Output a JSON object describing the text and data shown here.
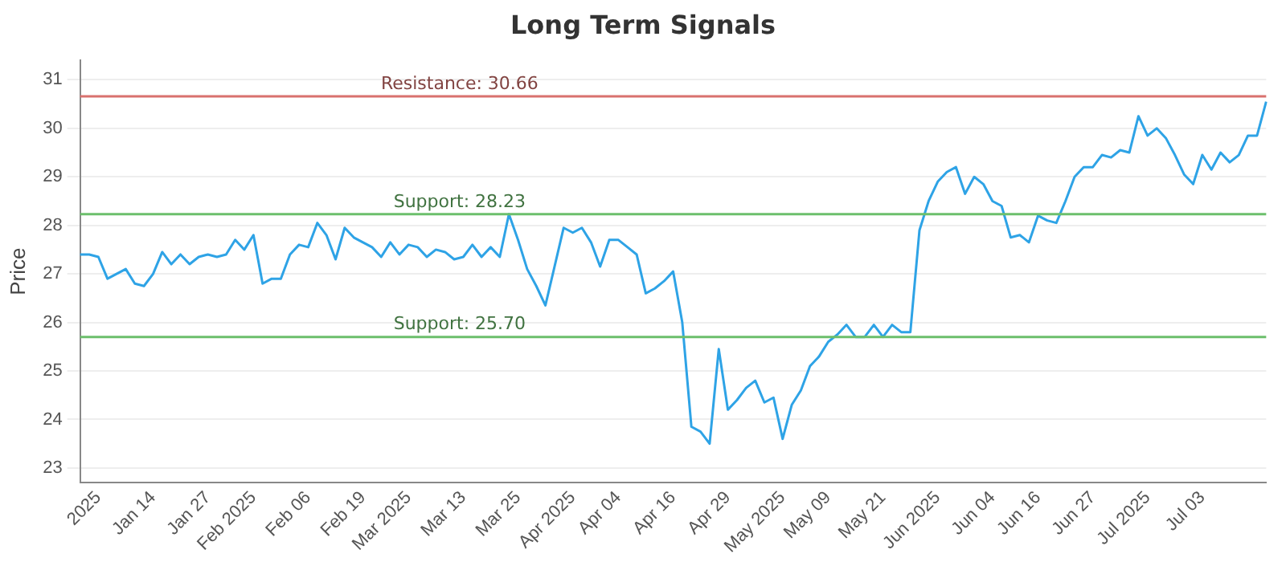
{
  "chart_data": {
    "type": "line",
    "title": "Long Term Signals",
    "ylabel": "Price",
    "categories": [
      null,
      null,
      "2025",
      null,
      null,
      null,
      null,
      null,
      "Jan 14",
      null,
      null,
      null,
      null,
      null,
      "Jan 27",
      null,
      null,
      null,
      null,
      "Feb 2025",
      null,
      null,
      null,
      null,
      null,
      "Feb 06",
      null,
      null,
      null,
      null,
      null,
      "Feb 19",
      null,
      null,
      null,
      null,
      "Mar 2025",
      null,
      null,
      null,
      null,
      null,
      "Mar 13",
      null,
      null,
      null,
      null,
      null,
      "Mar 25",
      null,
      null,
      null,
      null,
      null,
      "Apr 2025",
      null,
      null,
      null,
      null,
      "Apr 04",
      null,
      null,
      null,
      null,
      null,
      "Apr 16",
      null,
      null,
      null,
      null,
      null,
      "Apr 29",
      null,
      null,
      null,
      null,
      null,
      "May 2025",
      null,
      null,
      null,
      null,
      "May 09",
      null,
      null,
      null,
      null,
      null,
      "May 21",
      null,
      null,
      null,
      null,
      null,
      "Jun 2025",
      null,
      null,
      null,
      null,
      null,
      "Jun 04",
      null,
      null,
      null,
      null,
      "Jun 16",
      null,
      null,
      null,
      null,
      null,
      "Jun 27",
      null,
      null,
      null,
      null,
      null,
      "Jul 2025",
      null,
      null,
      null,
      null,
      null,
      "Jul 03",
      null,
      null,
      null,
      null,
      null,
      null,
      null
    ],
    "series": [
      {
        "color": "#2ea3e6",
        "values": [
          27.4,
          27.4,
          27.35,
          26.9,
          27.0,
          27.1,
          26.8,
          26.75,
          27.0,
          27.45,
          27.2,
          27.4,
          27.2,
          27.35,
          27.4,
          27.35,
          27.4,
          27.7,
          27.5,
          27.8,
          26.8,
          26.9,
          26.9,
          27.4,
          27.6,
          27.55,
          28.05,
          27.8,
          27.3,
          27.95,
          27.75,
          27.65,
          27.55,
          27.35,
          27.65,
          27.4,
          27.6,
          27.55,
          27.35,
          27.5,
          27.45,
          27.3,
          27.35,
          27.6,
          27.35,
          27.55,
          27.35,
          28.23,
          27.7,
          27.1,
          26.75,
          26.35,
          27.15,
          27.95,
          27.85,
          27.95,
          27.65,
          27.15,
          27.7,
          27.7,
          27.55,
          27.4,
          26.6,
          26.7,
          26.85,
          27.05,
          26.0,
          23.85,
          23.75,
          23.5,
          25.45,
          24.2,
          24.4,
          24.65,
          24.8,
          24.35,
          24.45,
          23.6,
          24.3,
          24.6,
          25.1,
          25.3,
          25.6,
          25.75,
          25.95,
          25.7,
          25.7,
          25.95,
          25.7,
          25.95,
          25.8,
          25.8,
          27.9,
          28.5,
          28.9,
          29.1,
          29.2,
          28.65,
          29.0,
          28.85,
          28.5,
          28.4,
          27.75,
          27.8,
          27.65,
          28.2,
          28.1,
          28.05,
          28.5,
          29.0,
          29.2,
          29.2,
          29.45,
          29.4,
          29.55,
          29.5,
          30.25,
          29.85,
          30.0,
          29.8,
          29.45,
          29.05,
          28.85,
          29.45,
          29.15,
          29.5,
          29.3,
          29.45,
          29.85,
          29.85,
          30.55
        ]
      }
    ],
    "ylim": [
      22.7,
      31.4
    ],
    "yticks": [
      23,
      24,
      25,
      26,
      27,
      28,
      29,
      30,
      31
    ],
    "grid": "y",
    "legend": false,
    "marker": "none",
    "line_style": "solid",
    "ref_lines": [
      {
        "axis": "y",
        "value": 30.66,
        "label": "Resistance: 30.66",
        "color": "#d9716e"
      },
      {
        "axis": "y",
        "value": 28.23,
        "label": "Support: 28.23",
        "color": "#6cbf6c"
      },
      {
        "axis": "y",
        "value": 25.7,
        "label": "Support: 25.70",
        "color": "#6cbf6c"
      }
    ]
  }
}
